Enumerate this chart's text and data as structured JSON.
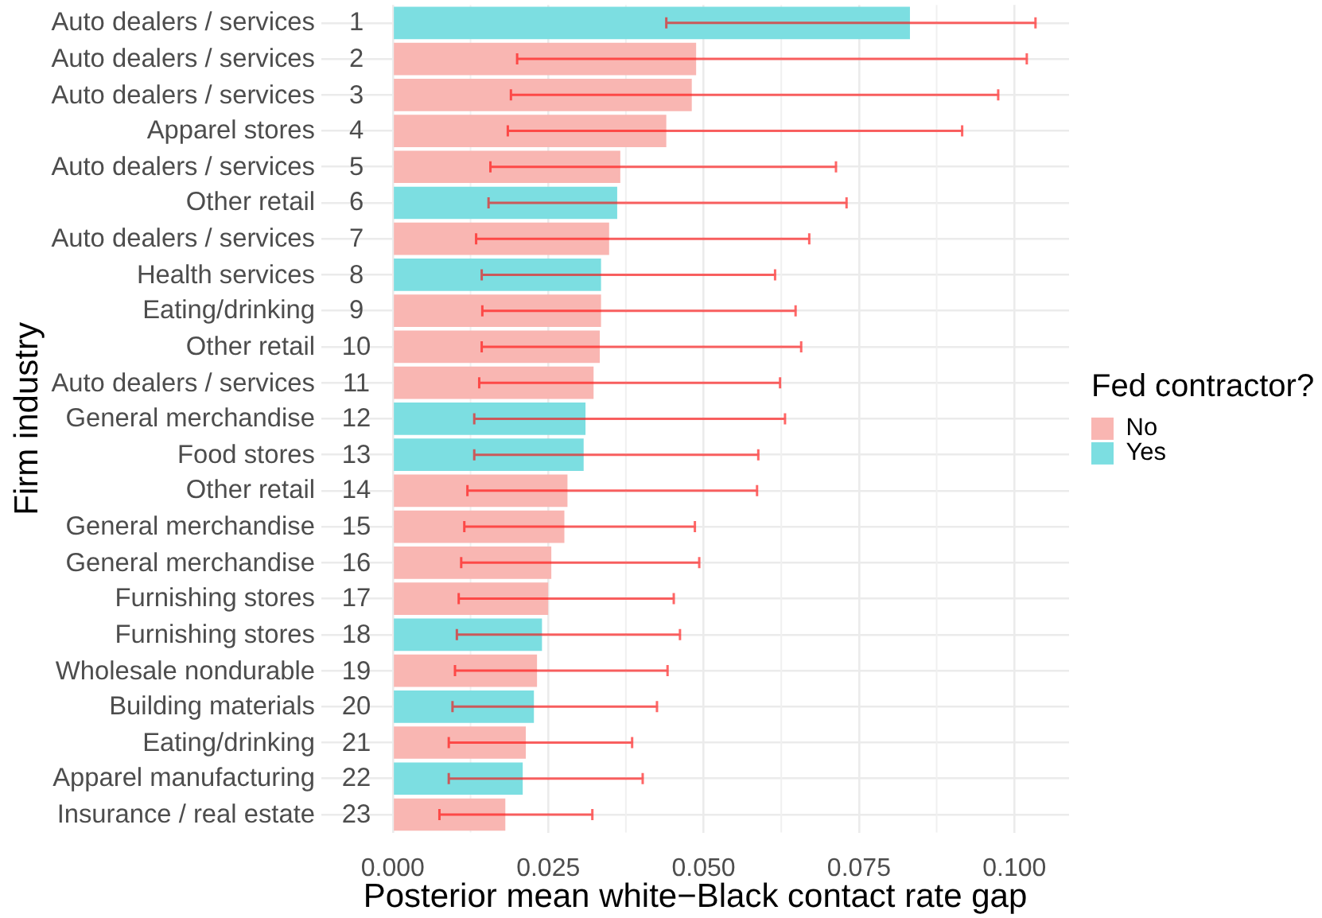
{
  "chart_data": {
    "type": "bar",
    "orientation": "horizontal",
    "xlabel": "Posterior mean white−Black contact rate gap",
    "ylabel": "Firm industry",
    "legend_title": "Fed contractor?",
    "legend": "right",
    "grid": true,
    "categories": [
      "Auto dealers / services 1",
      "Auto dealers / services 2",
      "Auto dealers / services 3",
      "Apparel stores 4",
      "Auto dealers / services 5",
      "Other retail 6",
      "Auto dealers / services 7",
      "Health services 8",
      "Eating/drinking 9",
      "Other retail 10",
      "Auto dealers / services 11",
      "General merchandise 12",
      "Food stores 13",
      "Other retail 14",
      "General merchandise 15",
      "General merchandise 16",
      "Furnishing stores 17",
      "Furnishing stores 18",
      "Wholesale nondurable 19",
      "Building materials 20",
      "Eating/drinking 21",
      "Apparel manufacturing 22",
      "Insurance / real estate 23"
    ],
    "series": [
      {
        "name": "No",
        "color": "#f9b6b2",
        "values": [
          null,
          0.0488,
          0.0481,
          0.044,
          0.0366,
          null,
          0.0348,
          null,
          0.0335,
          0.0333,
          0.0323,
          null,
          null,
          0.0281,
          0.0276,
          0.0255,
          0.025,
          null,
          0.0232,
          null,
          0.0214,
          null,
          0.0181
        ],
        "errors": [
          null,
          [
            0.02,
            0.102
          ],
          [
            0.019,
            0.0974
          ],
          [
            0.0185,
            0.0916
          ],
          [
            0.0157,
            0.0713
          ],
          null,
          [
            0.0134,
            0.067
          ],
          null,
          [
            0.0144,
            0.0648
          ],
          [
            0.0143,
            0.0657
          ],
          [
            0.0139,
            0.0623
          ],
          null,
          null,
          [
            0.012,
            0.0586
          ],
          [
            0.0115,
            0.0486
          ],
          [
            0.011,
            0.0493
          ],
          [
            0.0106,
            0.0452
          ],
          null,
          [
            0.01,
            0.0442
          ],
          null,
          [
            0.009,
            0.0385
          ],
          null,
          [
            0.0075,
            0.0321
          ]
        ]
      },
      {
        "name": "Yes",
        "color": "#7cdee1",
        "values": [
          0.0832,
          null,
          null,
          null,
          null,
          0.0361,
          null,
          0.0335,
          null,
          null,
          null,
          0.031,
          0.0307,
          null,
          null,
          null,
          null,
          0.024,
          null,
          0.0227,
          null,
          0.0209,
          null
        ],
        "errors": [
          [
            0.044,
            0.1034
          ],
          null,
          null,
          null,
          null,
          [
            0.0154,
            0.073
          ],
          null,
          [
            0.0143,
            0.0615
          ],
          null,
          null,
          null,
          [
            0.0131,
            0.0631
          ],
          [
            0.0131,
            0.0588
          ],
          null,
          null,
          null,
          null,
          [
            0.0103,
            0.0462
          ],
          null,
          [
            0.0096,
            0.0425
          ],
          null,
          [
            0.009,
            0.0402
          ],
          null
        ]
      }
    ],
    "xlim": [
      -0.0115,
      0.1088
    ],
    "xticks": [
      {
        "value": 0,
        "label": "0.000"
      },
      0.025,
      {
        "value": 0.05,
        "label": "0.050"
      },
      0.075,
      {
        "value": 0.1,
        "label": "0.100"
      }
    ]
  }
}
